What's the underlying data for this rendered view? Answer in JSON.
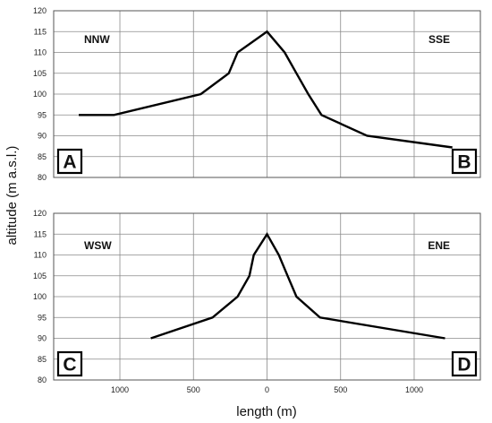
{
  "chart_data": [
    {
      "type": "line",
      "panel": "A-B",
      "corner_labels": [
        "A",
        "B"
      ],
      "direction_labels": [
        "NNW",
        "SSE"
      ],
      "xlim": [
        1450,
        -1450
      ],
      "ylim": [
        80,
        120
      ],
      "yticks": [
        80,
        85,
        90,
        95,
        100,
        105,
        110,
        115,
        120
      ],
      "x": [
        1280,
        1040,
        450,
        260,
        200,
        0,
        -120,
        -200,
        -280,
        -370,
        -680,
        -1260
      ],
      "y": [
        95,
        95,
        100,
        105,
        110,
        115,
        110,
        105,
        100,
        95,
        90,
        87.2
      ],
      "grid": true
    },
    {
      "type": "line",
      "panel": "C-D",
      "corner_labels": [
        "C",
        "D"
      ],
      "direction_labels": [
        "WSW",
        "ENE"
      ],
      "xlim": [
        1450,
        -1450
      ],
      "ylim": [
        80,
        120
      ],
      "yticks": [
        80,
        85,
        90,
        95,
        100,
        105,
        110,
        115,
        120
      ],
      "xticks": [
        1000,
        500,
        0,
        500,
        1000
      ],
      "x": [
        790,
        370,
        200,
        120,
        90,
        0,
        -80,
        -140,
        -200,
        -360,
        -1210
      ],
      "y": [
        90,
        95,
        100,
        105,
        110,
        115,
        110,
        105,
        100,
        95,
        90
      ],
      "grid": true
    }
  ],
  "axes": {
    "ylabel": "altitude (m a.s.l.)",
    "xlabel": "length (m)"
  }
}
